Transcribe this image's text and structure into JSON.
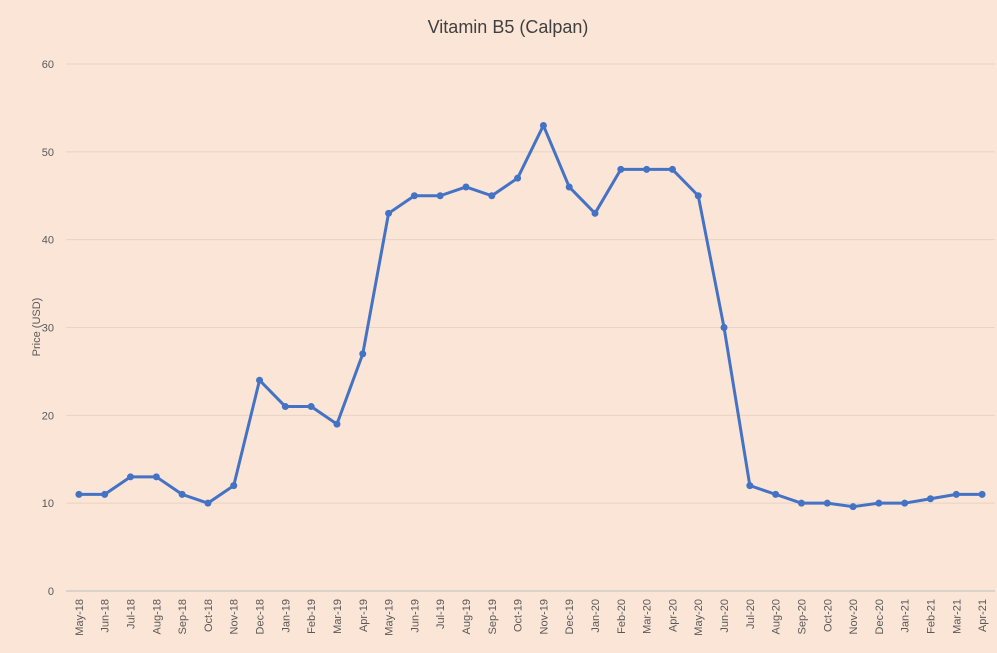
{
  "chart_data": {
    "type": "line",
    "title": "Vitamin B5 (Calpan)",
    "y_label": "Price (USD)",
    "categories": [
      "May-18",
      "Jun-18",
      "Jul-18",
      "Aug-18",
      "Sep-18",
      "Oct-18",
      "Nov-18",
      "Dec-18",
      "Jan-19",
      "Feb-19",
      "Mar-19",
      "Apr-19",
      "May-19",
      "Jun-19",
      "Jul-19",
      "Aug-19",
      "Sep-19",
      "Oct-19",
      "Nov-19",
      "Dec-19",
      "Jan-20",
      "Feb-20",
      "Mar-20",
      "Apr-20",
      "May-20",
      "Jun-20",
      "Jul-20",
      "Aug-20",
      "Sep-20",
      "Oct-20",
      "Nov-20",
      "Dec-20",
      "Jan-21",
      "Feb-21",
      "Mar-21",
      "Apr-21"
    ],
    "values": [
      11,
      11,
      13,
      13,
      11,
      10,
      12,
      24,
      21,
      21,
      19,
      27,
      43,
      45,
      45,
      46,
      45,
      47,
      53,
      46,
      43,
      48,
      48,
      48,
      45,
      30,
      12,
      11,
      10,
      10,
      9.6,
      10,
      10,
      10.5,
      11,
      11
    ],
    "color": "#4472c4",
    "ylim": [
      0,
      60
    ],
    "yticks": [
      0,
      10,
      20,
      30,
      40,
      50,
      60
    ],
    "grid": true
  }
}
